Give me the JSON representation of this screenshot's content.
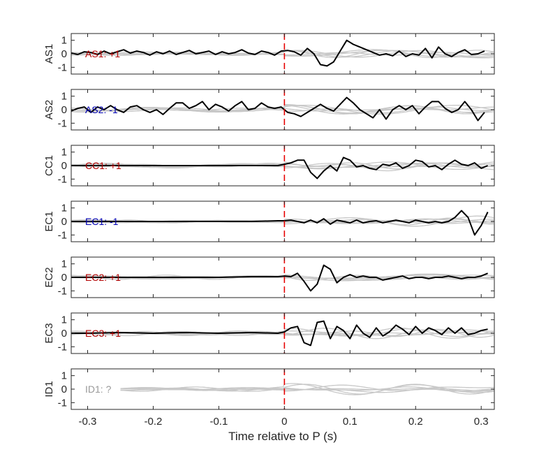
{
  "chart_data": {
    "type": "line",
    "xlabel": "Time relative to P (s)",
    "xlim": [
      -0.325,
      0.32
    ],
    "xticks": [
      -0.3,
      -0.2,
      -0.1,
      0,
      0.1,
      0.2,
      0.3
    ],
    "xtick_labels": [
      "-0.3",
      "-0.2",
      "-0.1",
      "0",
      "0.1",
      "0.2",
      "0.3"
    ],
    "ylim": [
      -1.5,
      1.5
    ],
    "yticks": [
      1,
      0,
      -1
    ],
    "ytick_labels": [
      "1",
      "0",
      "-1"
    ],
    "p_marker_x": 0,
    "colors": {
      "positive": "#b30000",
      "negative": "#0000b3",
      "unknown": "#999999",
      "trace": "#000000",
      "background_traces": "#c8c8c8",
      "p_marker": "#e60000"
    },
    "panels": [
      {
        "ylabel": "AS1",
        "polarity_label": "AS1: +1",
        "polarity": "positive",
        "series": [
          {
            "name": "AS1",
            "x": [
              -0.325,
              -0.315,
              -0.305,
              -0.295,
              -0.285,
              -0.275,
              -0.265,
              -0.255,
              -0.245,
              -0.235,
              -0.225,
              -0.215,
              -0.205,
              -0.195,
              -0.185,
              -0.175,
              -0.165,
              -0.155,
              -0.145,
              -0.135,
              -0.125,
              -0.115,
              -0.105,
              -0.095,
              -0.085,
              -0.075,
              -0.065,
              -0.055,
              -0.045,
              -0.035,
              -0.025,
              -0.015,
              -0.005,
              0.005,
              0.015,
              0.025,
              0.035,
              0.045,
              0.055,
              0.065,
              0.075,
              0.085,
              0.095,
              0.105,
              0.115,
              0.125,
              0.135,
              0.145,
              0.155,
              0.165,
              0.175,
              0.185,
              0.195,
              0.205,
              0.215,
              0.225,
              0.235,
              0.245,
              0.255,
              0.265,
              0.275,
              0.285,
              0.295,
              0.305
            ],
            "y": [
              0.05,
              -0.05,
              0.15,
              0.1,
              -0.05,
              0.2,
              0.0,
              0.15,
              0.3,
              0.05,
              0.2,
              0.1,
              -0.1,
              0.15,
              0.0,
              0.2,
              -0.05,
              0.1,
              0.25,
              0.0,
              0.1,
              0.2,
              -0.05,
              0.15,
              0.0,
              0.1,
              0.3,
              0.05,
              -0.05,
              0.2,
              0.1,
              -0.1,
              0.2,
              0.25,
              0.15,
              -0.1,
              0.4,
              0.0,
              -0.8,
              -0.9,
              -0.6,
              0.2,
              1.0,
              0.7,
              0.5,
              0.3,
              0.1,
              -0.1,
              0.0,
              -0.15,
              0.2,
              -0.2,
              0.0,
              -0.1,
              0.4,
              -0.3,
              0.5,
              0.0,
              -0.2,
              0.1,
              0.3,
              -0.05,
              0.0,
              0.2
            ]
          }
        ]
      },
      {
        "ylabel": "AS2",
        "polarity_label": "AS2: -1",
        "polarity": "negative",
        "series": [
          {
            "name": "AS2",
            "x": [
              -0.325,
              -0.315,
              -0.305,
              -0.295,
              -0.285,
              -0.275,
              -0.265,
              -0.255,
              -0.245,
              -0.235,
              -0.225,
              -0.215,
              -0.205,
              -0.195,
              -0.185,
              -0.175,
              -0.165,
              -0.155,
              -0.145,
              -0.135,
              -0.125,
              -0.115,
              -0.105,
              -0.095,
              -0.085,
              -0.075,
              -0.065,
              -0.055,
              -0.045,
              -0.035,
              -0.025,
              -0.015,
              -0.005,
              0.005,
              0.015,
              0.025,
              0.035,
              0.045,
              0.055,
              0.065,
              0.075,
              0.085,
              0.095,
              0.105,
              0.115,
              0.125,
              0.135,
              0.145,
              0.155,
              0.165,
              0.175,
              0.185,
              0.195,
              0.205,
              0.215,
              0.225,
              0.235,
              0.245,
              0.255,
              0.265,
              0.275,
              0.285,
              0.295,
              0.305
            ],
            "y": [
              -0.1,
              0.1,
              0.2,
              -0.2,
              0.2,
              0.0,
              0.3,
              0.0,
              -0.2,
              0.2,
              0.3,
              0.0,
              -0.2,
              0.0,
              -0.35,
              0.1,
              0.5,
              0.5,
              0.1,
              0.3,
              0.6,
              0.0,
              0.4,
              0.2,
              -0.1,
              0.3,
              0.6,
              0.0,
              0.1,
              0.5,
              0.2,
              0.1,
              0.2,
              -0.2,
              -0.3,
              -0.5,
              -0.2,
              0.1,
              0.4,
              0.1,
              -0.1,
              0.4,
              0.9,
              0.5,
              0.0,
              -0.3,
              -0.6,
              0.0,
              -0.7,
              0.0,
              0.3,
              0.0,
              0.3,
              -0.3,
              0.2,
              0.6,
              0.6,
              0.1,
              -0.2,
              0.0,
              0.6,
              0.0,
              -0.8,
              -0.2
            ]
          }
        ]
      },
      {
        "ylabel": "CC1",
        "polarity_label": "CC1: +1",
        "polarity": "positive",
        "series": [
          {
            "name": "CC1",
            "x": [
              -0.325,
              -0.3,
              -0.25,
              -0.2,
              -0.15,
              -0.1,
              -0.05,
              -0.01,
              0.0,
              0.01,
              0.02,
              0.03,
              0.04,
              0.05,
              0.06,
              0.07,
              0.08,
              0.09,
              0.1,
              0.11,
              0.12,
              0.13,
              0.14,
              0.15,
              0.16,
              0.17,
              0.18,
              0.19,
              0.2,
              0.21,
              0.22,
              0.23,
              0.24,
              0.25,
              0.26,
              0.27,
              0.28,
              0.29,
              0.3,
              0.31
            ],
            "y": [
              0.0,
              0.0,
              0.0,
              0.0,
              0.0,
              0.0,
              0.0,
              0.0,
              0.1,
              0.2,
              0.4,
              0.4,
              -0.5,
              -0.95,
              -0.4,
              0.0,
              -0.4,
              0.6,
              0.4,
              -0.1,
              0.0,
              -0.2,
              -0.3,
              0.1,
              0.0,
              0.2,
              -0.2,
              0.0,
              0.4,
              0.3,
              -0.1,
              0.0,
              -0.3,
              0.1,
              0.4,
              0.1,
              0.0,
              0.2,
              -0.2,
              0.0
            ]
          }
        ]
      },
      {
        "ylabel": "EC1",
        "polarity_label": "EC1: -1",
        "polarity": "negative",
        "series": [
          {
            "name": "EC1",
            "x": [
              -0.325,
              -0.3,
              -0.25,
              -0.2,
              -0.15,
              -0.1,
              -0.05,
              -0.01,
              0.0,
              0.01,
              0.02,
              0.03,
              0.04,
              0.05,
              0.06,
              0.07,
              0.08,
              0.09,
              0.1,
              0.11,
              0.12,
              0.13,
              0.14,
              0.15,
              0.16,
              0.17,
              0.18,
              0.19,
              0.2,
              0.21,
              0.22,
              0.23,
              0.24,
              0.25,
              0.26,
              0.27,
              0.28,
              0.29,
              0.3,
              0.31
            ],
            "y": [
              0.0,
              0.0,
              0.0,
              0.0,
              0.0,
              0.0,
              0.0,
              0.05,
              0.05,
              0.1,
              0.0,
              -0.1,
              0.1,
              -0.1,
              0.2,
              -0.2,
              0.1,
              0.0,
              -0.1,
              0.1,
              -0.1,
              0.0,
              0.05,
              -0.1,
              0.0,
              0.1,
              0.0,
              -0.1,
              0.1,
              0.0,
              -0.1,
              0.0,
              -0.1,
              0.0,
              0.3,
              0.8,
              0.3,
              -1.0,
              -0.3,
              0.7
            ]
          }
        ]
      },
      {
        "ylabel": "EC2",
        "polarity_label": "EC2: +1",
        "polarity": "positive",
        "series": [
          {
            "name": "EC2",
            "x": [
              -0.325,
              -0.3,
              -0.25,
              -0.2,
              -0.15,
              -0.1,
              -0.05,
              -0.01,
              0.0,
              0.01,
              0.02,
              0.03,
              0.04,
              0.05,
              0.06,
              0.07,
              0.08,
              0.09,
              0.1,
              0.11,
              0.12,
              0.13,
              0.14,
              0.15,
              0.16,
              0.17,
              0.18,
              0.19,
              0.2,
              0.21,
              0.22,
              0.23,
              0.24,
              0.25,
              0.26,
              0.27,
              0.28,
              0.29,
              0.3,
              0.31
            ],
            "y": [
              0.0,
              0.0,
              0.0,
              0.0,
              0.0,
              0.0,
              0.05,
              0.05,
              0.1,
              0.05,
              0.3,
              -0.3,
              -1.0,
              -0.5,
              0.9,
              0.6,
              -0.4,
              0.0,
              0.2,
              0.0,
              0.1,
              0.0,
              0.0,
              -0.2,
              -0.1,
              0.0,
              0.1,
              -0.1,
              0.0,
              0.0,
              -0.1,
              0.0,
              0.0,
              0.1,
              0.0,
              -0.1,
              0.0,
              0.0,
              0.1,
              0.3
            ]
          }
        ]
      },
      {
        "ylabel": "EC3",
        "polarity_label": "EC3: +1",
        "polarity": "positive",
        "series": [
          {
            "name": "EC3",
            "x": [
              -0.325,
              -0.3,
              -0.25,
              -0.2,
              -0.15,
              -0.1,
              -0.05,
              -0.01,
              0.0,
              0.01,
              0.02,
              0.03,
              0.04,
              0.05,
              0.06,
              0.07,
              0.08,
              0.09,
              0.1,
              0.11,
              0.12,
              0.13,
              0.14,
              0.15,
              0.16,
              0.17,
              0.18,
              0.19,
              0.2,
              0.21,
              0.22,
              0.23,
              0.24,
              0.25,
              0.26,
              0.27,
              0.28,
              0.29,
              0.3,
              0.31
            ],
            "y": [
              0.0,
              0.0,
              0.05,
              0.0,
              0.05,
              0.0,
              0.05,
              0.0,
              0.1,
              0.4,
              0.5,
              -0.7,
              -0.9,
              0.8,
              0.9,
              -0.4,
              0.5,
              0.2,
              -0.4,
              0.6,
              0.0,
              -0.3,
              0.4,
              -0.2,
              0.1,
              0.6,
              0.3,
              -0.1,
              0.5,
              0.0,
              0.4,
              0.2,
              -0.1,
              0.4,
              0.0,
              0.4,
              -0.1,
              0.0,
              0.2,
              0.3
            ]
          }
        ]
      },
      {
        "ylabel": "ID1",
        "polarity_label": "ID1: ?",
        "polarity": "unknown",
        "series": []
      }
    ]
  }
}
